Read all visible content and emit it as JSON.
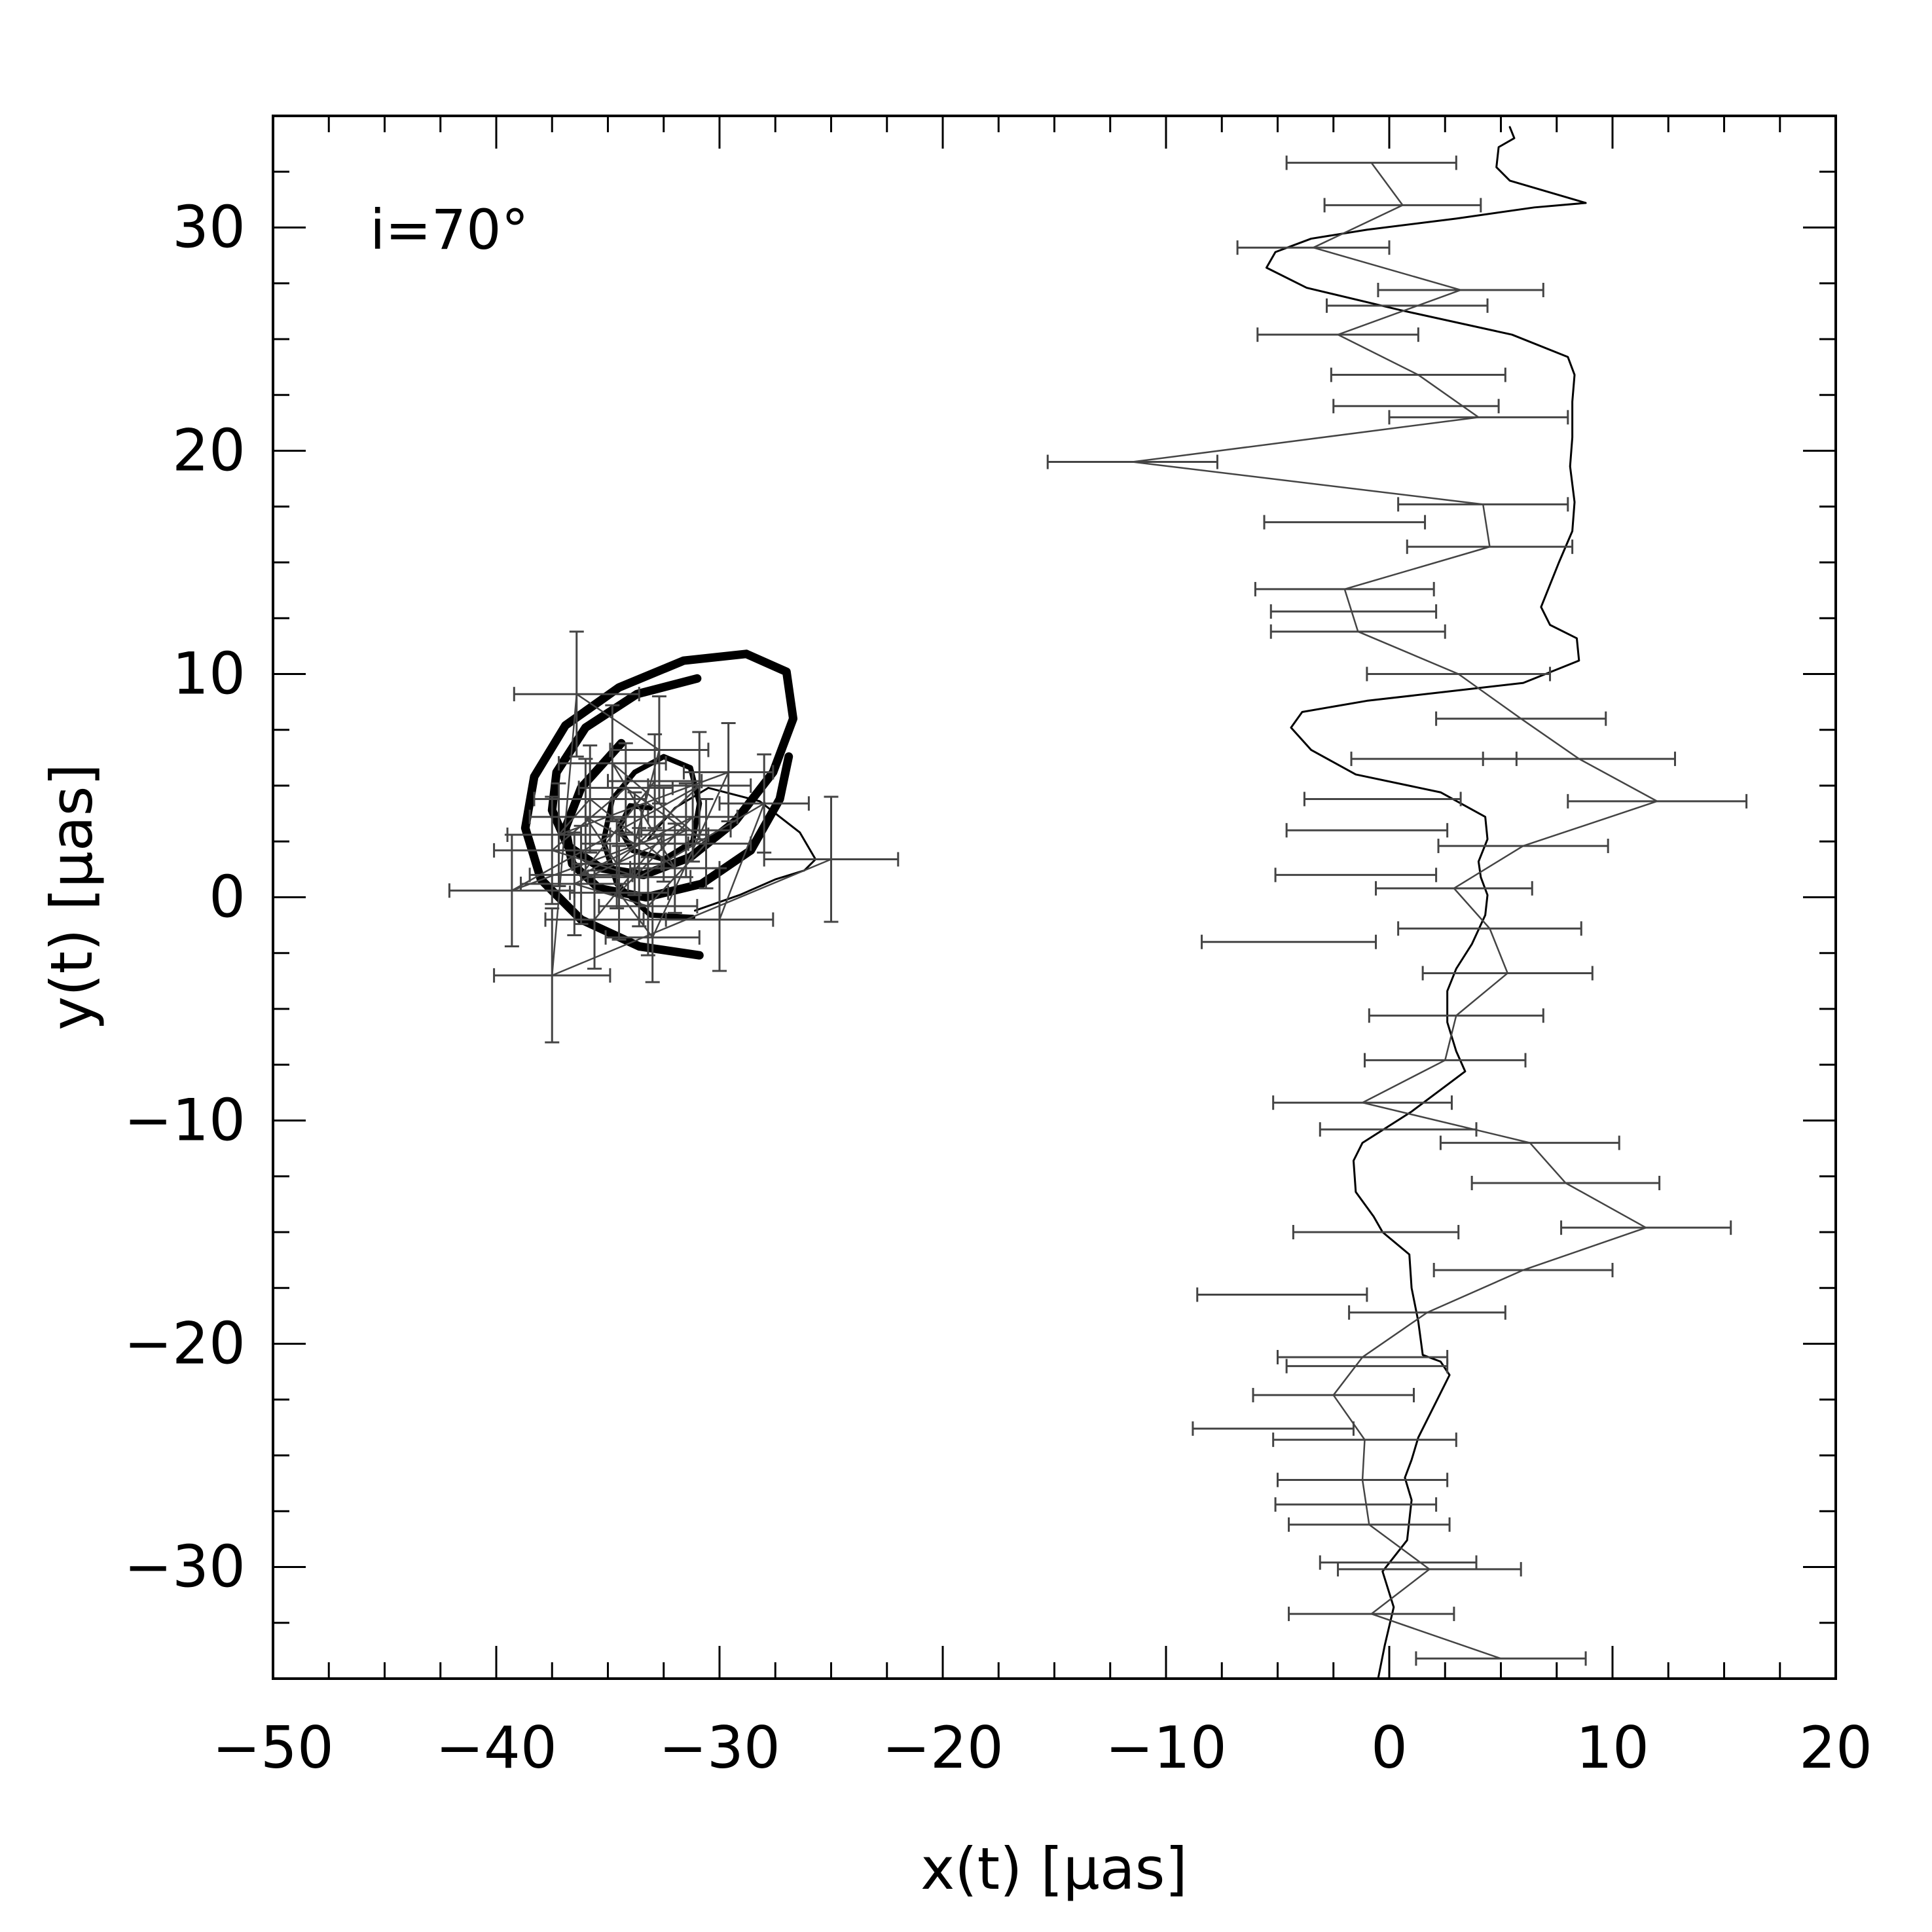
{
  "chart_data": {
    "type": "line",
    "title": "",
    "annotation": "i=70°",
    "xlabel": "x(t)  [μas]",
    "ylabel": "y(t)  [μas]",
    "xlim": [
      -50,
      20
    ],
    "ylim": [
      -35,
      35
    ],
    "xticks": [
      -50,
      -40,
      -30,
      -20,
      -10,
      0,
      10,
      20
    ],
    "yticks": [
      -30,
      -20,
      -10,
      0,
      10,
      20,
      30
    ],
    "xtick_labels": [
      "−50",
      "−40",
      "−30",
      "−20",
      "−10",
      "0",
      "10",
      "20"
    ],
    "ytick_labels": [
      "−30",
      "−20",
      "−10",
      "0",
      "10",
      "20",
      "30"
    ],
    "colors": {
      "model": "#000000",
      "data": "#444444"
    },
    "series": [
      {
        "style": "model-thick",
        "x": [
          -30.9,
          -33.6,
          -36.2,
          -38.0,
          -38.7,
          -38.3,
          -36.9,
          -34.5,
          -31.6,
          -28.8,
          -27.0,
          -26.7,
          -27.6,
          -29.3,
          -31.3,
          -33.4,
          -35.3,
          -36.8,
          -37.5,
          -37.3,
          -36.0,
          -33.7,
          -31.0
        ],
        "y": [
          -2.6,
          -2.2,
          -1.0,
          0.8,
          3.1,
          5.4,
          7.7,
          9.4,
          10.6,
          10.9,
          10.1,
          8.0,
          5.6,
          3.4,
          1.8,
          1.0,
          1.3,
          2.3,
          3.9,
          5.6,
          7.6,
          9.1,
          9.8
        ]
      },
      {
        "style": "model-thick",
        "x": [
          -26.9,
          -27.3,
          -28.6,
          -30.8,
          -33.3,
          -35.4,
          -36.6,
          -36.9,
          -36.2,
          -34.4
        ],
        "y": [
          6.3,
          4.4,
          2.1,
          0.6,
          0.0,
          0.4,
          1.5,
          3.1,
          4.9,
          6.9
        ]
      },
      {
        "style": "model-medium",
        "x": [
          -31.2,
          -33.1,
          -34.6,
          -35.2,
          -34.8,
          -33.8,
          -32.5,
          -31.3,
          -30.9,
          -31.2,
          -32.5,
          -33.9,
          -34.5,
          -34.0,
          -33.1
        ],
        "y": [
          -0.9,
          -0.8,
          0.6,
          2.5,
          4.4,
          5.6,
          6.3,
          5.8,
          4.2,
          2.5,
          1.7,
          2.1,
          3.1,
          4.1,
          4.0
        ]
      },
      {
        "style": "model-thin",
        "x": [
          -31.1,
          -29.1,
          -27.5,
          -26.2,
          -25.7,
          -26.4,
          -28.2,
          -30.5,
          -32.0,
          -33.2
        ],
        "y": [
          -0.6,
          0.1,
          0.8,
          1.2,
          1.7,
          2.9,
          4.3,
          4.9,
          4.0,
          2.6
        ]
      },
      {
        "style": "model-wiggle",
        "x": [
          -0.5,
          -0.2,
          0.2,
          -0.3,
          0.8,
          1.0,
          0.7,
          1.0,
          1.3,
          2.1,
          2.7,
          2.3,
          1.5,
          1.3,
          1.0,
          0.9,
          -0.3,
          -0.7,
          -1.5,
          -1.6,
          -1.2,
          1.0,
          3.4,
          3.0,
          2.6,
          2.6,
          3.0,
          3.7,
          4.3,
          4.4,
          4.1,
          4.0,
          4.4,
          4.3,
          2.3,
          -1.5,
          -3.5,
          -4.4,
          -3.9,
          -1.0,
          2.5,
          6.0,
          8.5,
          8.4,
          7.2,
          6.8,
          7.2,
          7.6,
          8.2,
          8.3,
          8.1,
          8.2,
          8.2,
          8.3,
          8.0,
          5.5,
          0.5,
          -3.7,
          -5.5,
          -5.1,
          -3.5,
          -1.0,
          3.0,
          6.5,
          8.8,
          7.1,
          5.4,
          4.8,
          4.9,
          5.6,
          5.4,
          4.8,
          3.6,
          1.6,
          -0.5,
          -1.4,
          -1.3,
          -0.5,
          0.4,
          0.6,
          0.6,
          0.7,
          1.2,
          1.8,
          1.6,
          0.7,
          0.1
        ],
        "y": [
          -35.0,
          -33.5,
          -31.8,
          -30.2,
          -28.8,
          -27.0,
          -26.0,
          -25.2,
          -24.2,
          -22.6,
          -21.4,
          -20.8,
          -20.5,
          -19.0,
          -17.5,
          -16.0,
          -15.0,
          -14.3,
          -13.2,
          -11.8,
          -11.0,
          -9.6,
          -7.8,
          -6.9,
          -5.6,
          -4.2,
          -3.2,
          -2.1,
          -0.8,
          0.1,
          0.9,
          1.6,
          2.6,
          3.6,
          4.7,
          5.5,
          6.6,
          7.6,
          8.3,
          8.8,
          9.2,
          9.6,
          10.6,
          11.6,
          12.2,
          13.0,
          14.0,
          15.0,
          16.4,
          17.7,
          19.3,
          20.6,
          22.2,
          23.4,
          24.2,
          25.2,
          26.3,
          27.3,
          28.2,
          28.9,
          29.5,
          29.9,
          30.4,
          30.9,
          31.1,
          31.6,
          32.1,
          32.7,
          33.6,
          34.0,
          34.5,
          35.0,
          35.0,
          35.0,
          35.0,
          35.0,
          35.0,
          35.0,
          35.0,
          35.0,
          35.0,
          35.0,
          35.0,
          35.0,
          35.0,
          35.0,
          35.0
        ]
      },
      {
        "style": "data",
        "x": [
          5.0,
          -0.8,
          1.8,
          -0.9,
          -1.2,
          -1.1,
          -2.5,
          -1.2,
          1.7,
          6.0,
          11.5,
          7.9,
          6.3,
          -1.2,
          2.5,
          3.0,
          5.3,
          4.5,
          2.9,
          6.0,
          12.0,
          8.5,
          5.9,
          3.1,
          -1.4,
          -2.0,
          4.5,
          4.2,
          -11.5,
          4.0,
          1.3,
          -2.3,
          3.2,
          -3.4,
          0.6,
          -0.8,
          -5.2,
          -0.6,
          0.4,
          -1.0,
          -1.5,
          -0.3,
          2.0,
          -1.6,
          -2.0,
          1.2,
          0.8,
          -4.5,
          -1.0,
          -4.8,
          -1.5,
          0.4
        ],
        "y": [
          -34.1,
          -32.1,
          -30.1,
          -28.1,
          -26.1,
          -24.3,
          -22.3,
          -20.6,
          -18.6,
          -16.7,
          -14.8,
          -12.8,
          -11.0,
          -9.2,
          -7.3,
          -5.3,
          -3.4,
          -1.4,
          0.4,
          2.3,
          4.3,
          6.2,
          8.0,
          10.0,
          11.9,
          13.8,
          15.7,
          17.6,
          19.5,
          21.5,
          23.4,
          25.2,
          27.2,
          29.1,
          31.0,
          32.9,
          -23.8,
          -15.0,
          -10.4,
          -21.0,
          1.0,
          4.4,
          6.2,
          12.8,
          16.8,
          22.0,
          26.5,
          -2.0,
          3.0,
          -17.8,
          -27.2,
          -29.8
        ],
        "xerr": [
          3.8,
          3.7,
          4.1,
          3.6,
          3.8,
          4.1,
          3.6,
          3.8,
          3.5,
          4.0,
          3.8,
          4.2,
          4.0,
          4.0,
          3.6,
          3.9,
          3.8,
          4.1,
          3.5,
          3.8,
          4.0,
          4.3,
          3.8,
          4.1,
          3.9,
          4.0,
          3.7,
          3.8,
          3.8,
          4.0,
          3.9,
          3.6,
          3.7,
          3.4,
          3.5,
          3.8,
          3.6,
          3.7,
          3.5,
          3.6,
          3.6,
          3.5,
          3.7,
          3.7,
          3.6,
          3.7,
          3.6,
          3.9,
          3.6,
          3.8,
          3.6,
          3.5
        ],
        "_comment": "trajectory path drawn through data points"
      }
    ],
    "left_cluster": {
      "x": [
        -25.0,
        -37.5,
        -36.4,
        -32.7,
        -33.8,
        -36.0,
        -34.6,
        -30.9,
        -39.3,
        -32.5,
        -35.6,
        -30.0,
        -28.0,
        -33.6,
        -37.5,
        -34.2,
        -31.5,
        -36.5,
        -33.2,
        -30.6,
        -34.8,
        -32.0,
        -35.8,
        -37.2,
        -29.6,
        -33.0,
        -34.5,
        -31.2,
        -36.2,
        -32.9
      ],
      "y": [
        1.7,
        -3.5,
        9.1,
        6.6,
        2.4,
        3.6,
        1.5,
        5.0,
        0.3,
        2.8,
        -1.0,
        -1.0,
        4.2,
        0.9,
        2.1,
        4.9,
        3.0,
        0.6,
        -0.4,
        2.4,
        6.0,
        1.3,
        4.4,
        2.8,
        5.6,
        -1.8,
        0.2,
        3.6,
        1.0,
        5.2
      ],
      "xerr": [
        3.0,
        2.6,
        2.8,
        2.2,
        2.4,
        2.5,
        2.0,
        2.3,
        2.8,
        2.0,
        2.2,
        2.4,
        2.0,
        2.3,
        2.6,
        2.1,
        2.0,
        2.4,
        2.2,
        2.0,
        2.4,
        2.0,
        2.5,
        2.3,
        2.0,
        2.1,
        2.2,
        2.0,
        2.3,
        2.1
      ],
      "yerr": [
        2.8,
        3.0,
        2.8,
        2.4,
        2.3,
        2.6,
        2.0,
        2.4,
        2.5,
        2.1,
        2.2,
        2.3,
        2.2,
        2.2,
        2.4,
        2.0,
        2.1,
        2.3,
        2.2,
        2.0,
        2.6,
        2.0,
        2.4,
        2.3,
        2.2,
        2.0,
        2.1,
        2.0,
        2.2,
        2.1
      ]
    }
  }
}
